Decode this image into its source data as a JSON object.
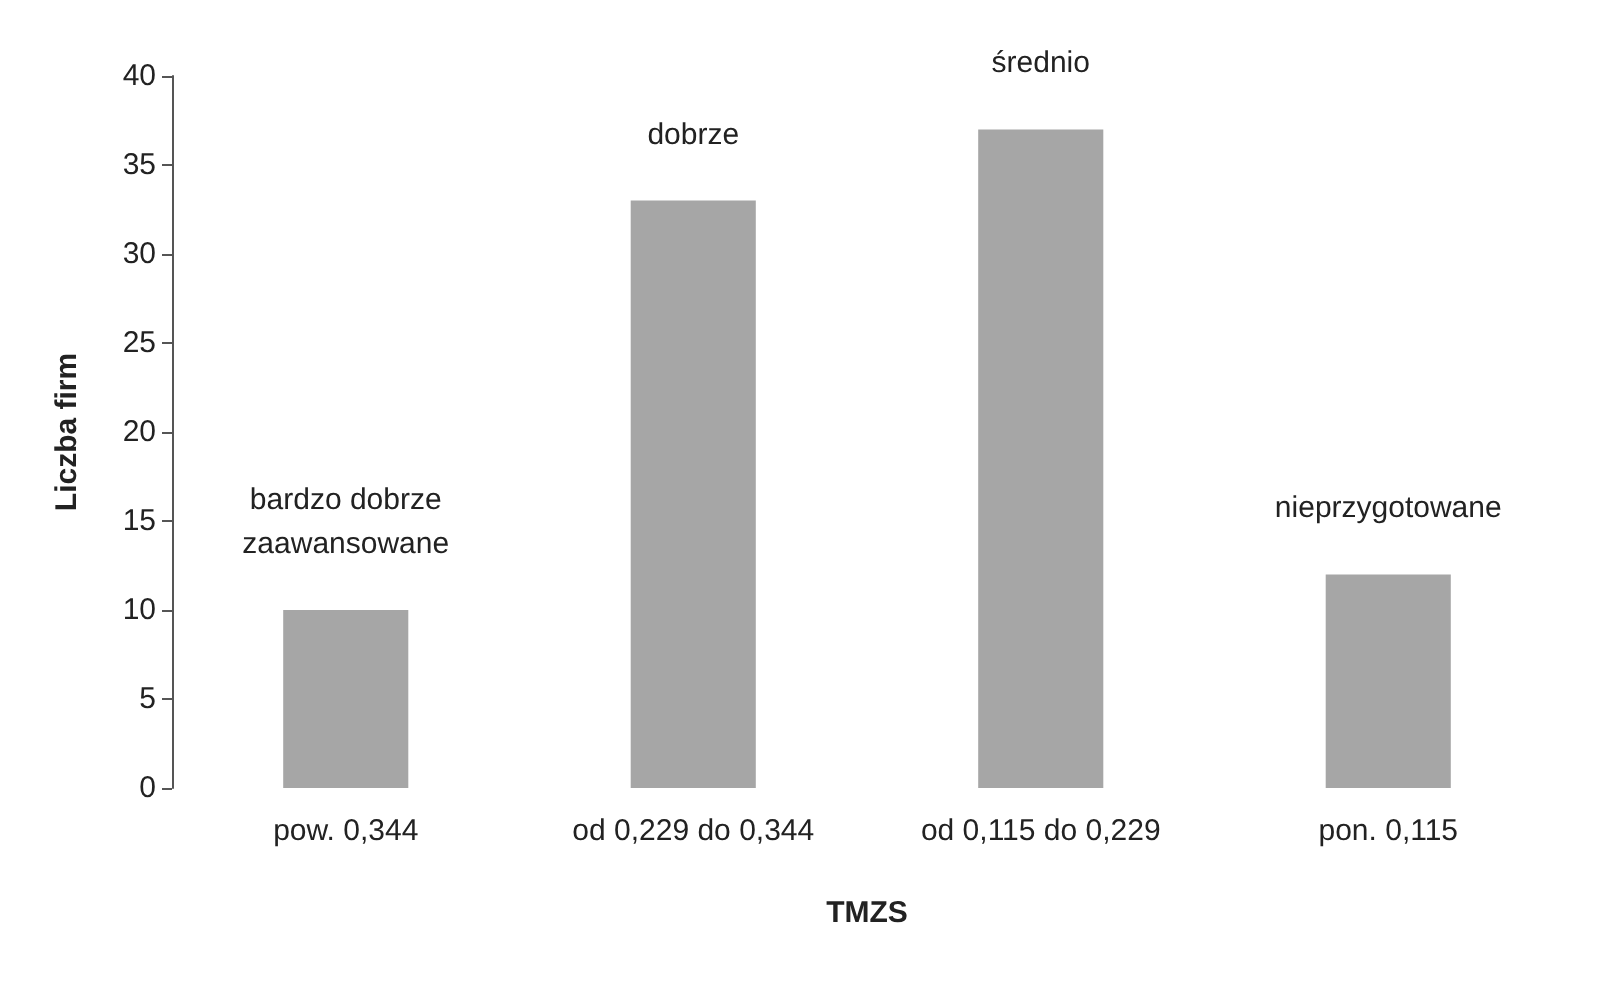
{
  "chart_data": {
    "type": "bar",
    "xlabel": "TMZS",
    "ylabel": "Liczba firm",
    "categories": [
      "pow. 0,344",
      "od 0,229 do 0,344",
      "od 0,115 do 0,229",
      "pon. 0,115"
    ],
    "values": [
      10,
      33,
      37,
      12
    ],
    "color": "#a6a6a6",
    "ylim": [
      0,
      40
    ],
    "yticks": [
      0,
      5,
      10,
      15,
      20,
      25,
      30,
      35,
      40
    ],
    "grid": false,
    "annotations": [
      {
        "text": "bardzo dobrze\nzaawansowane",
        "x": "pow. 0,344",
        "y": 10
      },
      {
        "text": "dobrze",
        "x": "od 0,229 do 0,344",
        "y": 33
      },
      {
        "text": "średnio",
        "x": "od 0,115 do 0,229",
        "y": 37
      },
      {
        "text": "nieprzygotowane",
        "x": "pon. 0,115",
        "y": 12
      }
    ]
  }
}
